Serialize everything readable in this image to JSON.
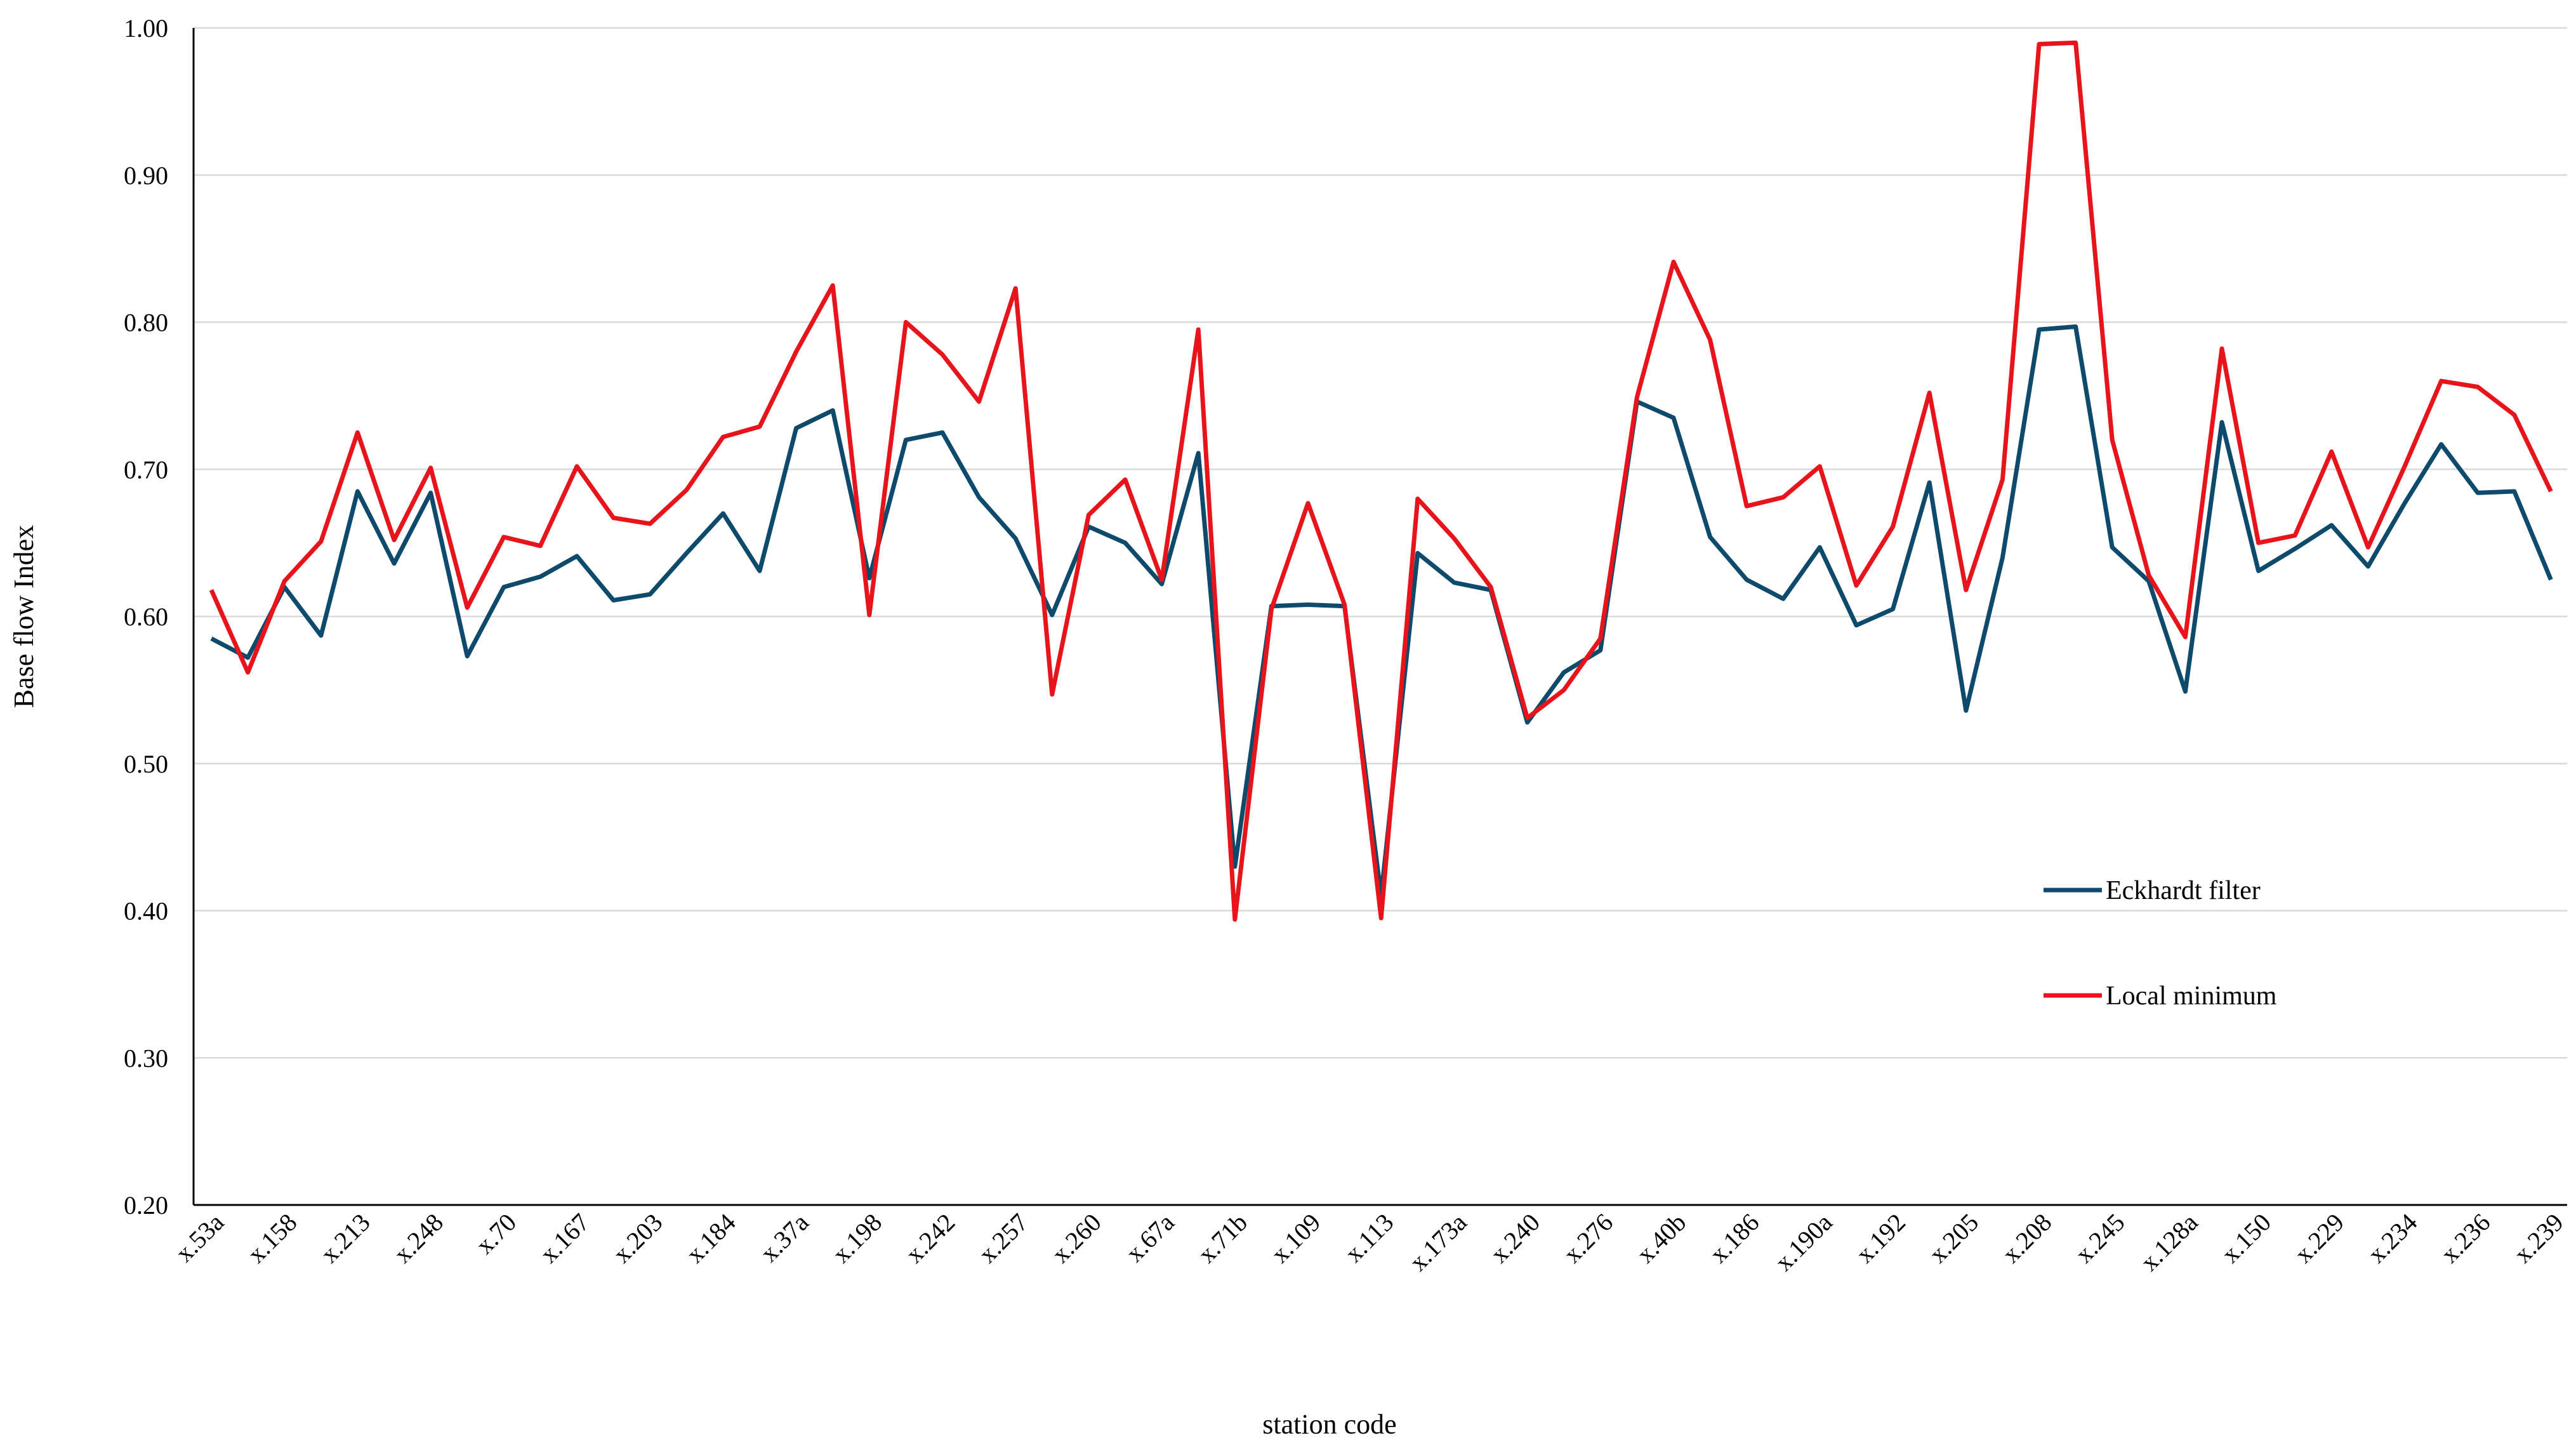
{
  "chart_data": {
    "type": "line",
    "title": "",
    "xlabel": "station code",
    "ylabel": "Base flow Index",
    "ylim": [
      0.2,
      1.0
    ],
    "yticks": [
      "0.20",
      "0.30",
      "0.40",
      "0.50",
      "0.60",
      "0.70",
      "0.80",
      "0.90",
      "1.00"
    ],
    "grid": "horizontal",
    "legend_position": "right-center",
    "x_tick_labels": [
      "x.53a",
      "x.158",
      "x.213",
      "x.248",
      "x.70",
      "x.167",
      "x.203",
      "x.184",
      "x.37a",
      "x.198",
      "x.242",
      "x.257",
      "x.260",
      "x.67a",
      "x.71b",
      "x.109",
      "x.113",
      "x.173a",
      "x.240",
      "x.276",
      "x.40b",
      "x.186",
      "x.190a",
      "x.192",
      "x.205",
      "x.208",
      "x.245",
      "x.128a",
      "x.150",
      "x.229",
      "x.234",
      "x.236",
      "x.239"
    ],
    "series": [
      {
        "name": "Eckhardt filter",
        "color": "#0e4a6b",
        "values": [
          0.585,
          0.572,
          0.62,
          0.587,
          0.685,
          0.636,
          0.684,
          0.573,
          0.62,
          0.627,
          0.641,
          0.611,
          0.615,
          0.643,
          0.67,
          0.631,
          0.728,
          0.74,
          0.626,
          0.72,
          0.725,
          0.681,
          0.653,
          0.601,
          0.661,
          0.65,
          0.622,
          0.711,
          0.43,
          0.607,
          0.608,
          0.607,
          0.41,
          0.643,
          0.623,
          0.618,
          0.528,
          0.562,
          0.577,
          0.746,
          0.735,
          0.654,
          0.625,
          0.612,
          0.647,
          0.594,
          0.605,
          0.691,
          0.536,
          0.64,
          0.795,
          0.797,
          0.647,
          0.624,
          0.549,
          0.732,
          0.631,
          0.646,
          0.662,
          0.634,
          0.677,
          0.717,
          0.684,
          0.685,
          0.625
        ]
      },
      {
        "name": "Local minimum",
        "color": "#e8141b",
        "values": [
          0.618,
          0.562,
          0.624,
          0.651,
          0.725,
          0.652,
          0.701,
          0.606,
          0.654,
          0.648,
          0.702,
          0.667,
          0.663,
          0.686,
          0.722,
          0.729,
          0.78,
          0.825,
          0.601,
          0.8,
          0.778,
          0.746,
          0.823,
          0.547,
          0.669,
          0.693,
          0.625,
          0.795,
          0.394,
          0.605,
          0.677,
          0.608,
          0.395,
          0.68,
          0.653,
          0.62,
          0.531,
          0.55,
          0.585,
          0.749,
          0.841,
          0.788,
          0.675,
          0.681,
          0.702,
          0.621,
          0.661,
          0.752,
          0.618,
          0.693,
          0.989,
          0.99,
          0.72,
          0.628,
          0.586,
          0.782,
          0.65,
          0.655,
          0.712,
          0.647,
          0.702,
          0.76,
          0.756,
          0.737,
          0.685
        ]
      }
    ]
  }
}
